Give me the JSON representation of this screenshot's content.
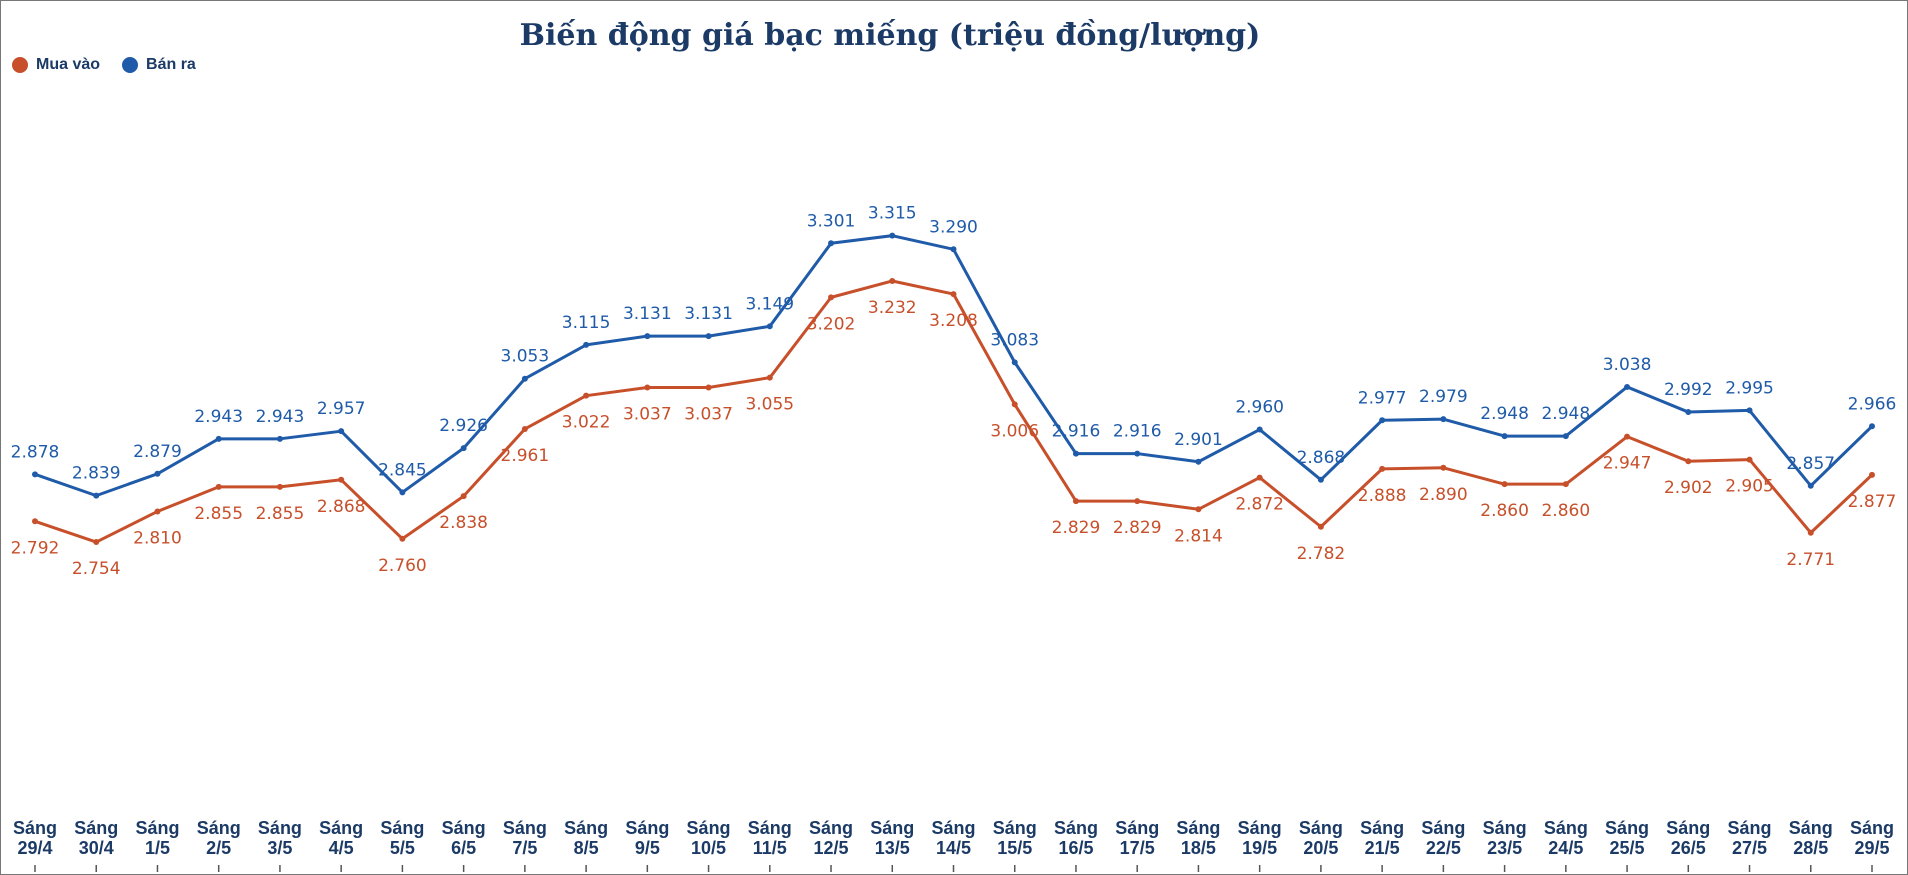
{
  "chart_data": {
    "type": "line",
    "title": "Biến động giá bạc miếng (triệu đồng/lượng)",
    "xlabel": "",
    "ylabel": "",
    "ylim": [
      2.3,
      3.6
    ],
    "grid": false,
    "legend_position": "top-left",
    "categories": [
      [
        "Sáng",
        "29/4"
      ],
      [
        "Sáng",
        "30/4"
      ],
      [
        "Sáng",
        "1/5"
      ],
      [
        "Sáng",
        "2/5"
      ],
      [
        "Sáng",
        "3/5"
      ],
      [
        "Sáng",
        "4/5"
      ],
      [
        "Sáng",
        "5/5"
      ],
      [
        "Sáng",
        "6/5"
      ],
      [
        "Sáng",
        "7/5"
      ],
      [
        "Sáng",
        "8/5"
      ],
      [
        "Sáng",
        "9/5"
      ],
      [
        "Sáng",
        "10/5"
      ],
      [
        "Sáng",
        "11/5"
      ],
      [
        "Sáng",
        "12/5"
      ],
      [
        "Sáng",
        "13/5"
      ],
      [
        "Sáng",
        "14/5"
      ],
      [
        "Sáng",
        "15/5"
      ],
      [
        "Sáng",
        "16/5"
      ],
      [
        "Sáng",
        "17/5"
      ],
      [
        "Sáng",
        "18/5"
      ],
      [
        "Sáng",
        "19/5"
      ],
      [
        "Sáng",
        "20/5"
      ],
      [
        "Sáng",
        "21/5"
      ],
      [
        "Sáng",
        "22/5"
      ],
      [
        "Sáng",
        "23/5"
      ],
      [
        "Sáng",
        "24/5"
      ],
      [
        "Sáng",
        "25/5"
      ],
      [
        "Sáng",
        "26/5"
      ],
      [
        "Sáng",
        "27/5"
      ],
      [
        "Sáng",
        "28/5"
      ],
      [
        "Sáng",
        "29/5"
      ]
    ],
    "series": [
      {
        "name": "Bán ra",
        "color": "#1f5ba8",
        "values": [
          2.878,
          2.839,
          2.879,
          2.943,
          2.943,
          2.957,
          2.845,
          2.926,
          3.053,
          3.115,
          3.131,
          3.131,
          3.149,
          3.301,
          3.315,
          3.29,
          3.083,
          2.916,
          2.916,
          2.901,
          2.96,
          2.868,
          2.977,
          2.979,
          2.948,
          2.948,
          3.038,
          2.992,
          2.995,
          2.857,
          2.966
        ],
        "labels": [
          "2.878",
          "2.839",
          "2.879",
          "2.943",
          "2.943",
          "2.957",
          "2.845",
          "2.926",
          "3.053",
          "3.115",
          "3.131",
          "3.131",
          "3.149",
          "3.301",
          "3.315",
          "3.290",
          "3.083",
          "2.916",
          "2.916",
          "2.901",
          "2.960",
          "2.868",
          "2.977",
          "2.979",
          "2.948",
          "2.948",
          "3.038",
          "2.992",
          "2.995",
          "2.857",
          "2.966"
        ]
      },
      {
        "name": "Mua vào",
        "color": "#c7502b",
        "values": [
          2.792,
          2.754,
          2.81,
          2.855,
          2.855,
          2.868,
          2.76,
          2.838,
          2.961,
          3.022,
          3.037,
          3.037,
          3.055,
          3.202,
          3.232,
          3.208,
          3.006,
          2.829,
          2.829,
          2.814,
          2.872,
          2.782,
          2.888,
          2.89,
          2.86,
          2.86,
          2.947,
          2.902,
          2.905,
          2.771,
          2.877
        ],
        "labels": [
          "2.792",
          "2.754",
          "2.810",
          "2.855",
          "2.855",
          "2.868",
          "2.760",
          "2.838",
          "2.961",
          "3.022",
          "3.037",
          "3.037",
          "3.055",
          "3.202",
          "3.232",
          "3.208",
          "3.006",
          "2.829",
          "2.829",
          "2.814",
          "2.872",
          "2.782",
          "2.888",
          "2.890",
          "2.860",
          "2.860",
          "2.947",
          "2.902",
          "2.905",
          "2.771",
          "2.877"
        ]
      }
    ]
  },
  "legend": {
    "buy_label": "Mua vào",
    "sell_label": "Bán ra"
  }
}
